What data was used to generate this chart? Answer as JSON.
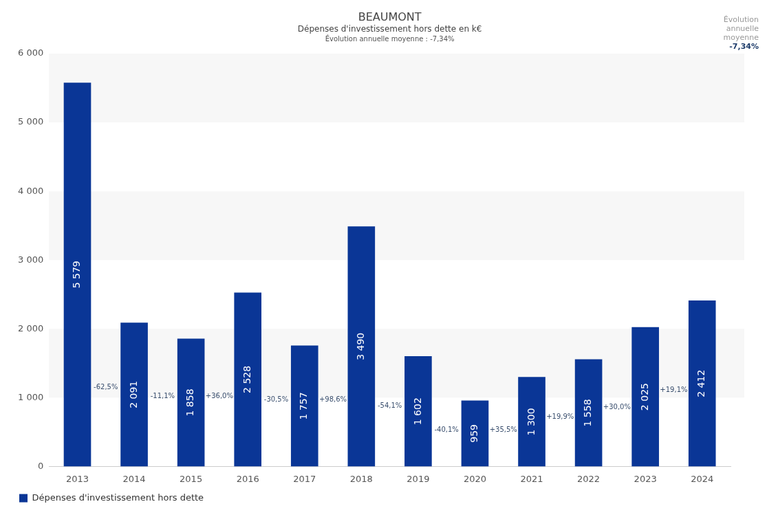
{
  "chart_data": {
    "type": "bar",
    "title": "BEAUMONT",
    "subtitle": "Dépenses d'investissement hors dette en k€",
    "categories": [
      "2013",
      "2014",
      "2015",
      "2016",
      "2017",
      "2018",
      "2019",
      "2020",
      "2021",
      "2022",
      "2023",
      "2024"
    ],
    "series": [
      {
        "name": "Dépenses d'investissement hors dette",
        "color": "#0a3696",
        "values": [
          5579,
          2091,
          1858,
          2528,
          1757,
          3490,
          1602,
          959,
          1300,
          1558,
          2025,
          2412
        ]
      }
    ],
    "ylim": [
      0,
      6000
    ],
    "yticks": [
      {
        "value": 0,
        "label": "0"
      },
      {
        "value": 1000,
        "label": "1 000"
      },
      {
        "value": 2000,
        "label": "2 000"
      },
      {
        "value": 3000,
        "label": "3 000"
      },
      {
        "value": 4000,
        "label": "4 000"
      },
      {
        "value": 5000,
        "label": "5 000"
      },
      {
        "value": 6000,
        "label": "6 000"
      }
    ],
    "bands": [
      {
        "axis": "y",
        "from": 1000,
        "to": 2000,
        "color": "#f7f7f7"
      },
      {
        "axis": "y",
        "from": 3000,
        "to": 4000,
        "color": "#f7f7f7"
      },
      {
        "axis": "y",
        "from": 5000,
        "to": 6000,
        "color": "#f7f7f7"
      }
    ],
    "grid": false,
    "legend": "bottom left",
    "data_labels": true,
    "annotations": [
      "Évolution annuelle moyenne : -7,34%",
      "Évolution annuelle moyenne -7,34%",
      "-62,5%",
      "-11,1%",
      "+36,0%",
      "-30,5%",
      "+98,6%",
      "-54,1%",
      "-40,1%",
      "+35,5%",
      "+19,9%",
      "+30,0%",
      "+19,1%"
    ]
  }
}
